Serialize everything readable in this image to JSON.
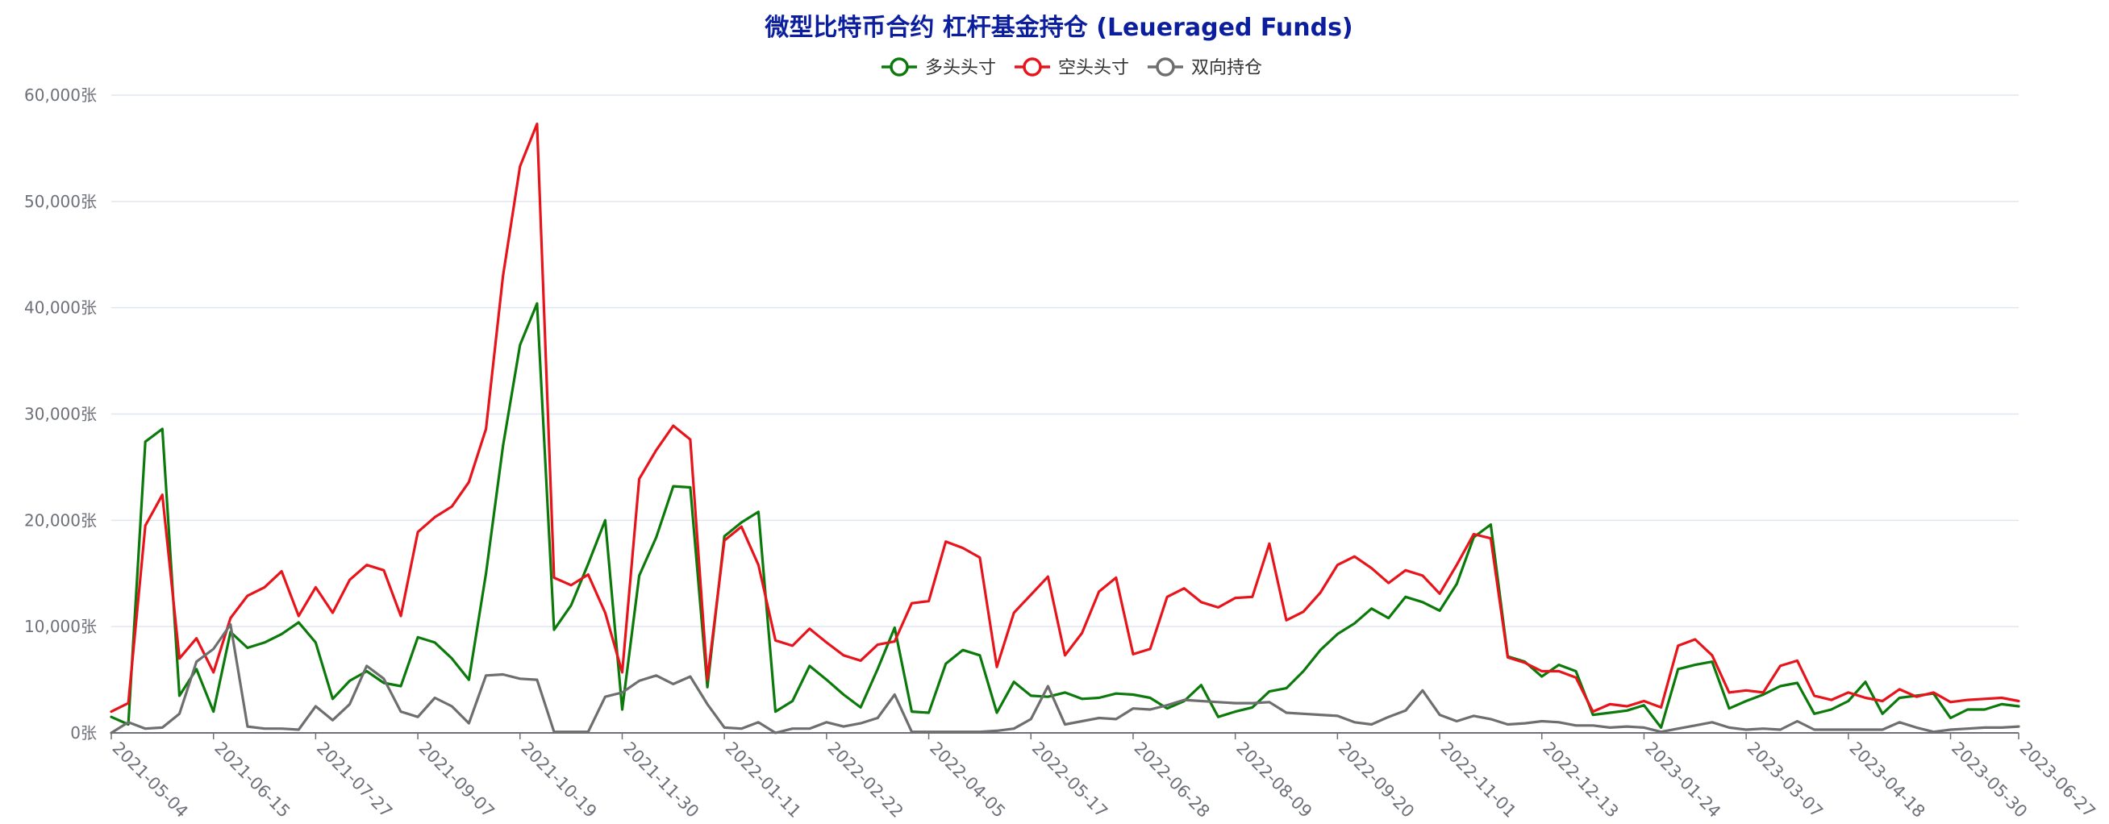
{
  "chart_data": {
    "type": "line",
    "title": "微型比特币合约 杠杆基金持仓 (Leueraged Funds)",
    "ylim": [
      0,
      60000
    ],
    "yticks": [
      "0张",
      "10,000张",
      "20,000张",
      "30,000张",
      "40,000张",
      "50,000张",
      "60,000张"
    ],
    "ytick_values": [
      0,
      10000,
      20000,
      30000,
      40000,
      50000,
      60000
    ],
    "legend_position": "top-center",
    "grid": "horizontal",
    "x_labels": [
      "2021-05-04",
      "2021-06-15",
      "2021-07-27",
      "2021-09-07",
      "2021-10-19",
      "2021-11-30",
      "2022-01-11",
      "2022-02-22",
      "2022-04-05",
      "2022-05-17",
      "2022-06-28",
      "2022-08-09",
      "2022-09-20",
      "2022-11-01",
      "2022-12-13",
      "2023-01-24",
      "2023-03-07",
      "2023-04-18",
      "2023-05-30",
      "2023-06-27"
    ],
    "x_label_indices": [
      0,
      6,
      12,
      18,
      24,
      30,
      36,
      42,
      48,
      54,
      60,
      66,
      72,
      78,
      84,
      90,
      96,
      102,
      108,
      112
    ],
    "x_count": 113,
    "series": [
      {
        "name": "多头头寸",
        "color": "#0b7a0b",
        "values": [
          1500,
          800,
          27400,
          28600,
          3500,
          6000,
          2000,
          9500,
          8000,
          8500,
          9300,
          10400,
          8500,
          3200,
          4900,
          5800,
          4700,
          4400,
          9000,
          8500,
          7000,
          5000,
          15000,
          27000,
          36500,
          40400,
          9700,
          12000,
          15900,
          20000,
          2200,
          14800,
          18400,
          23200,
          23100,
          4300,
          18500,
          19800,
          20800,
          2000,
          3000,
          6300,
          5000,
          3600,
          2400,
          6000,
          9900,
          2000,
          1900,
          6500,
          7800,
          7300,
          1900,
          4800,
          3500,
          3400,
          3800,
          3200,
          3300,
          3700,
          3600,
          3300,
          2300,
          3000,
          4500,
          1500,
          2000,
          2400,
          3900,
          4200,
          5800,
          7800,
          9300,
          10300,
          11700,
          10800,
          12800,
          12300,
          11500,
          14000,
          18400,
          19600,
          7200,
          6700,
          5300,
          6400,
          5800,
          1700,
          1900,
          2100,
          2600,
          500,
          6000,
          6400,
          6700,
          2300,
          3000,
          3600,
          4400,
          4700,
          1800,
          2200,
          3000,
          4800,
          1800,
          3300,
          3500,
          3700,
          1400,
          2200,
          2200,
          2700,
          2500
        ]
      },
      {
        "name": "空头头寸",
        "color": "#e8141b",
        "values": [
          2000,
          2800,
          19500,
          22400,
          7000,
          8900,
          5700,
          10800,
          12900,
          13700,
          15200,
          11000,
          13700,
          11300,
          14400,
          15800,
          15300,
          11000,
          18900,
          20300,
          21300,
          23600,
          28600,
          43000,
          53300,
          57300,
          14600,
          13900,
          14900,
          11300,
          5700,
          23900,
          26600,
          28900,
          27600,
          5000,
          18100,
          19400,
          15800,
          8700,
          8200,
          9800,
          8500,
          7300,
          6800,
          8300,
          8600,
          12200,
          12400,
          18000,
          17400,
          16500,
          6200,
          11300,
          13000,
          14700,
          7300,
          9400,
          13300,
          14600,
          7400,
          7900,
          12800,
          13600,
          12300,
          11800,
          12700,
          12800,
          17800,
          10600,
          11400,
          13200,
          15800,
          16600,
          15500,
          14100,
          15300,
          14800,
          13100,
          15800,
          18700,
          18300,
          7100,
          6600,
          5800,
          5800,
          5200,
          2000,
          2700,
          2500,
          3000,
          2400,
          8200,
          8800,
          7300,
          3800,
          4000,
          3800,
          6300,
          6800,
          3500,
          3100,
          3800,
          3300,
          3000,
          4100,
          3400,
          3800,
          2900,
          3100,
          3200,
          3300,
          3000
        ]
      },
      {
        "name": "双向持仓",
        "color": "#6e6e6e",
        "values": [
          0,
          1000,
          400,
          500,
          1800,
          6700,
          7900,
          10200,
          600,
          400,
          400,
          300,
          2500,
          1200,
          2700,
          6300,
          5100,
          2000,
          1500,
          3300,
          2500,
          900,
          5400,
          5500,
          5100,
          5000,
          100,
          100,
          100,
          3400,
          3800,
          4900,
          5400,
          4600,
          5300,
          2700,
          500,
          400,
          1000,
          0,
          400,
          400,
          1000,
          600,
          900,
          1400,
          3600,
          100,
          100,
          100,
          100,
          100,
          200,
          400,
          1300,
          4400,
          800,
          1100,
          1400,
          1300,
          2300,
          2200,
          2600,
          3100,
          3000,
          2900,
          2800,
          2800,
          2900,
          1900,
          1800,
          1700,
          1600,
          1000,
          800,
          1500,
          2100,
          4000,
          1700,
          1100,
          1600,
          1300,
          800,
          900,
          1100,
          1000,
          700,
          700,
          500,
          600,
          500,
          100,
          400,
          700,
          1000,
          500,
          300,
          400,
          300,
          1100,
          300,
          300,
          300,
          300,
          300,
          1000,
          500,
          100,
          300,
          400,
          500,
          500,
          600
        ]
      }
    ]
  }
}
